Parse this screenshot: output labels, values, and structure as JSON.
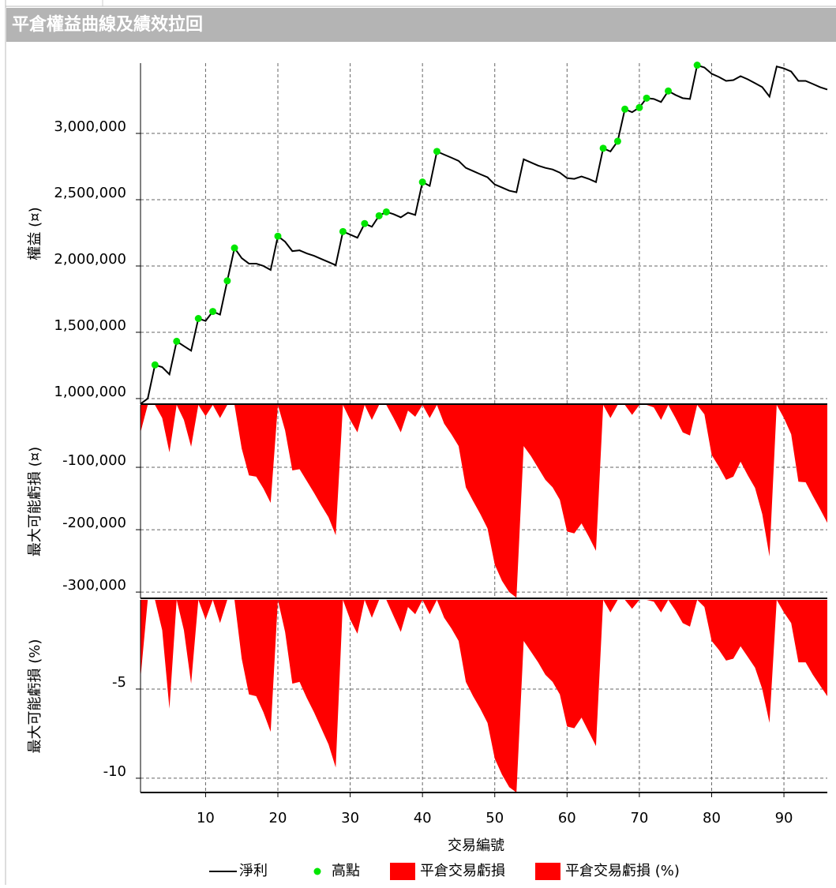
{
  "title": "平倉權益曲線及績效拉回",
  "chart_data": [
    {
      "type": "line",
      "ylabel": "權益 (¤)",
      "x": [
        1,
        2,
        3,
        4,
        5,
        6,
        7,
        8,
        9,
        10,
        11,
        12,
        13,
        14,
        15,
        16,
        17,
        18,
        19,
        20,
        21,
        22,
        23,
        24,
        25,
        26,
        27,
        28,
        29,
        30,
        31,
        32,
        33,
        34,
        35,
        36,
        37,
        38,
        39,
        40,
        41,
        42,
        43,
        44,
        45,
        46,
        47,
        48,
        49,
        50,
        51,
        52,
        53,
        54,
        55,
        56,
        57,
        58,
        59,
        60,
        61,
        62,
        63,
        64,
        65,
        66,
        67,
        68,
        69,
        70,
        71,
        72,
        73,
        74,
        75,
        76,
        77,
        78,
        79,
        80,
        81,
        82,
        83,
        84,
        85,
        86,
        87,
        88,
        89,
        90,
        91,
        92,
        93,
        94,
        95,
        96
      ],
      "series": [
        {
          "name": "淨利",
          "color": "#000000",
          "mode": "line",
          "values": [
            960000,
            1000000,
            1254000,
            1237000,
            1183000,
            1432000,
            1396000,
            1361000,
            1604000,
            1586000,
            1657000,
            1633000,
            1888000,
            2136000,
            2059000,
            2018000,
            2018000,
            2000000,
            1970000,
            2225000,
            2183000,
            2112000,
            2118000,
            2095000,
            2077000,
            2053000,
            2030000,
            2006000,
            2260000,
            2237000,
            2213000,
            2320000,
            2296000,
            2379000,
            2408000,
            2391000,
            2367000,
            2402000,
            2385000,
            2633000,
            2604000,
            2864000,
            2840000,
            2817000,
            2793000,
            2740000,
            2716000,
            2692000,
            2669000,
            2615000,
            2592000,
            2568000,
            2556000,
            2805000,
            2781000,
            2757000,
            2740000,
            2728000,
            2704000,
            2663000,
            2657000,
            2675000,
            2657000,
            2633000,
            2888000,
            2864000,
            2941000,
            3183000,
            3160000,
            3195000,
            3266000,
            3260000,
            3237000,
            3320000,
            3290000,
            3266000,
            3260000,
            3515000,
            3497000,
            3450000,
            3426000,
            3396000,
            3402000,
            3432000,
            3408000,
            3379000,
            3349000,
            3278000,
            3505000,
            3490000,
            3467000,
            3396000,
            3396000,
            3373000,
            3349000,
            3331000
          ]
        },
        {
          "name": "高點",
          "color": "#00e600",
          "mode": "markers",
          "values": [
            null,
            null,
            1254000,
            null,
            null,
            1432000,
            null,
            null,
            1604000,
            null,
            1657000,
            null,
            1888000,
            2136000,
            null,
            null,
            null,
            null,
            null,
            2225000,
            null,
            null,
            null,
            null,
            null,
            null,
            null,
            null,
            2260000,
            null,
            null,
            2320000,
            null,
            2379000,
            2408000,
            null,
            null,
            null,
            null,
            2633000,
            null,
            2864000,
            null,
            null,
            null,
            null,
            null,
            null,
            null,
            null,
            null,
            null,
            null,
            null,
            null,
            null,
            null,
            null,
            null,
            null,
            null,
            null,
            null,
            null,
            2888000,
            null,
            2941000,
            3183000,
            null,
            3195000,
            3266000,
            null,
            null,
            3320000,
            null,
            null,
            null,
            3515000,
            null,
            null,
            null,
            null,
            null,
            null,
            null,
            null,
            null,
            null,
            null,
            null,
            null,
            null,
            null,
            null,
            null,
            null
          ]
        }
      ],
      "ylim": [
        958000,
        3530000
      ],
      "yticks": [
        {
          "value": 1000000,
          "label": "1,000,000"
        },
        {
          "value": 1500000,
          "label": "1,500,000"
        },
        {
          "value": 2000000,
          "label": "2,000,000"
        },
        {
          "value": 2500000,
          "label": "2,500,000"
        },
        {
          "value": 3000000,
          "label": "3,000,000"
        }
      ],
      "grid": true
    },
    {
      "type": "area",
      "ylabel": "最大可能虧損 (¤)",
      "x": [
        1,
        2,
        3,
        4,
        5,
        6,
        7,
        8,
        9,
        10,
        11,
        12,
        13,
        14,
        15,
        16,
        17,
        18,
        19,
        20,
        21,
        22,
        23,
        24,
        25,
        26,
        27,
        28,
        29,
        30,
        31,
        32,
        33,
        34,
        35,
        36,
        37,
        38,
        39,
        40,
        41,
        42,
        43,
        44,
        45,
        46,
        47,
        48,
        49,
        50,
        51,
        52,
        53,
        54,
        55,
        56,
        57,
        58,
        59,
        60,
        61,
        62,
        63,
        64,
        65,
        66,
        67,
        68,
        69,
        70,
        71,
        72,
        73,
        74,
        75,
        76,
        77,
        78,
        79,
        80,
        81,
        82,
        83,
        84,
        85,
        86,
        87,
        88,
        89,
        90,
        91,
        92,
        93,
        94,
        95,
        96
      ],
      "series": [
        {
          "name": "平倉交易虧損",
          "color": "#ff0000",
          "values": [
            -44000,
            0,
            0,
            -21000,
            -76000,
            0,
            -24000,
            -67000,
            0,
            -18000,
            0,
            -21000,
            0,
            0,
            -70000,
            -113000,
            -115000,
            -134000,
            -157000,
            0,
            -41000,
            -105000,
            -103000,
            -122000,
            -141000,
            -161000,
            -180000,
            -209000,
            0,
            -24000,
            -44000,
            0,
            -24000,
            0,
            0,
            -21000,
            -44000,
            -9000,
            -19000,
            0,
            -21000,
            0,
            -30000,
            -47000,
            -66000,
            -132000,
            -154000,
            -175000,
            -198000,
            -256000,
            -282000,
            -300000,
            -309000,
            -66000,
            -82000,
            -101000,
            -120000,
            -132000,
            -152000,
            -203000,
            -206000,
            -190000,
            -211000,
            -234000,
            0,
            -21000,
            0,
            0,
            -16000,
            0,
            0,
            -4000,
            -24000,
            0,
            -21000,
            -44000,
            -49000,
            0,
            -15000,
            -80000,
            -99000,
            -120000,
            -115000,
            -91000,
            -113000,
            -133000,
            -175000,
            -243000,
            0,
            -21000,
            -47000,
            -123000,
            -124000,
            -146000,
            -167000,
            -189000
          ]
        }
      ],
      "ylim": [
        -310000,
        0
      ],
      "yticks": [
        {
          "value": -300000,
          "label": "-300,000"
        },
        {
          "value": -200000,
          "label": "-200,000"
        },
        {
          "value": -100000,
          "label": "-100,000"
        }
      ],
      "grid": true
    },
    {
      "type": "area",
      "ylabel": "最大可能虧損 (%)",
      "xlabel": "交易編號",
      "x": [
        1,
        2,
        3,
        4,
        5,
        6,
        7,
        8,
        9,
        10,
        11,
        12,
        13,
        14,
        15,
        16,
        17,
        18,
        19,
        20,
        21,
        22,
        23,
        24,
        25,
        26,
        27,
        28,
        29,
        30,
        31,
        32,
        33,
        34,
        35,
        36,
        37,
        38,
        39,
        40,
        41,
        42,
        43,
        44,
        45,
        46,
        47,
        48,
        49,
        50,
        51,
        52,
        53,
        54,
        55,
        56,
        57,
        58,
        59,
        60,
        61,
        62,
        63,
        64,
        65,
        66,
        67,
        68,
        69,
        70,
        71,
        72,
        73,
        74,
        75,
        76,
        77,
        78,
        79,
        80,
        81,
        82,
        83,
        84,
        85,
        86,
        87,
        88,
        89,
        90,
        91,
        92,
        93,
        94,
        95,
        96
      ],
      "series": [
        {
          "name": "平倉交易虧損 (%)",
          "color": "#ff0000",
          "values": [
            -4.4,
            0,
            0,
            -1.7,
            -6.1,
            0,
            -1.7,
            -4.7,
            0,
            -1.1,
            0,
            -1.3,
            0,
            0,
            -3.3,
            -5.3,
            -5.4,
            -6.3,
            -7.4,
            0,
            -1.8,
            -4.7,
            -4.6,
            -5.5,
            -6.3,
            -7.2,
            -8.1,
            -9.4,
            0,
            -1.1,
            -1.9,
            0,
            -1.0,
            0,
            0,
            -0.9,
            -1.8,
            -0.4,
            -0.8,
            0,
            -0.8,
            0,
            -1.0,
            -1.6,
            -2.3,
            -4.6,
            -5.4,
            -6.1,
            -6.9,
            -8.9,
            -9.8,
            -10.5,
            -10.8,
            -2.3,
            -2.9,
            -3.5,
            -4.2,
            -4.6,
            -5.3,
            -7.1,
            -7.2,
            -6.6,
            -7.4,
            -8.2,
            0,
            -0.7,
            0,
            0,
            -0.5,
            0,
            0,
            -0.1,
            -0.7,
            0,
            -0.6,
            -1.3,
            -1.5,
            0,
            -0.4,
            -2.3,
            -2.8,
            -3.4,
            -3.3,
            -2.6,
            -3.2,
            -3.8,
            -5.0,
            -6.9,
            0,
            -0.7,
            -1.3,
            -3.5,
            -3.5,
            -4.2,
            -4.8,
            -5.4
          ]
        }
      ],
      "ylim": [
        -10.8,
        0
      ],
      "yticks": [
        -10,
        -5
      ],
      "xlim": [
        1,
        96
      ],
      "xticks": [
        10,
        20,
        30,
        40,
        50,
        60,
        70,
        80,
        90
      ],
      "grid": true
    }
  ]
}
